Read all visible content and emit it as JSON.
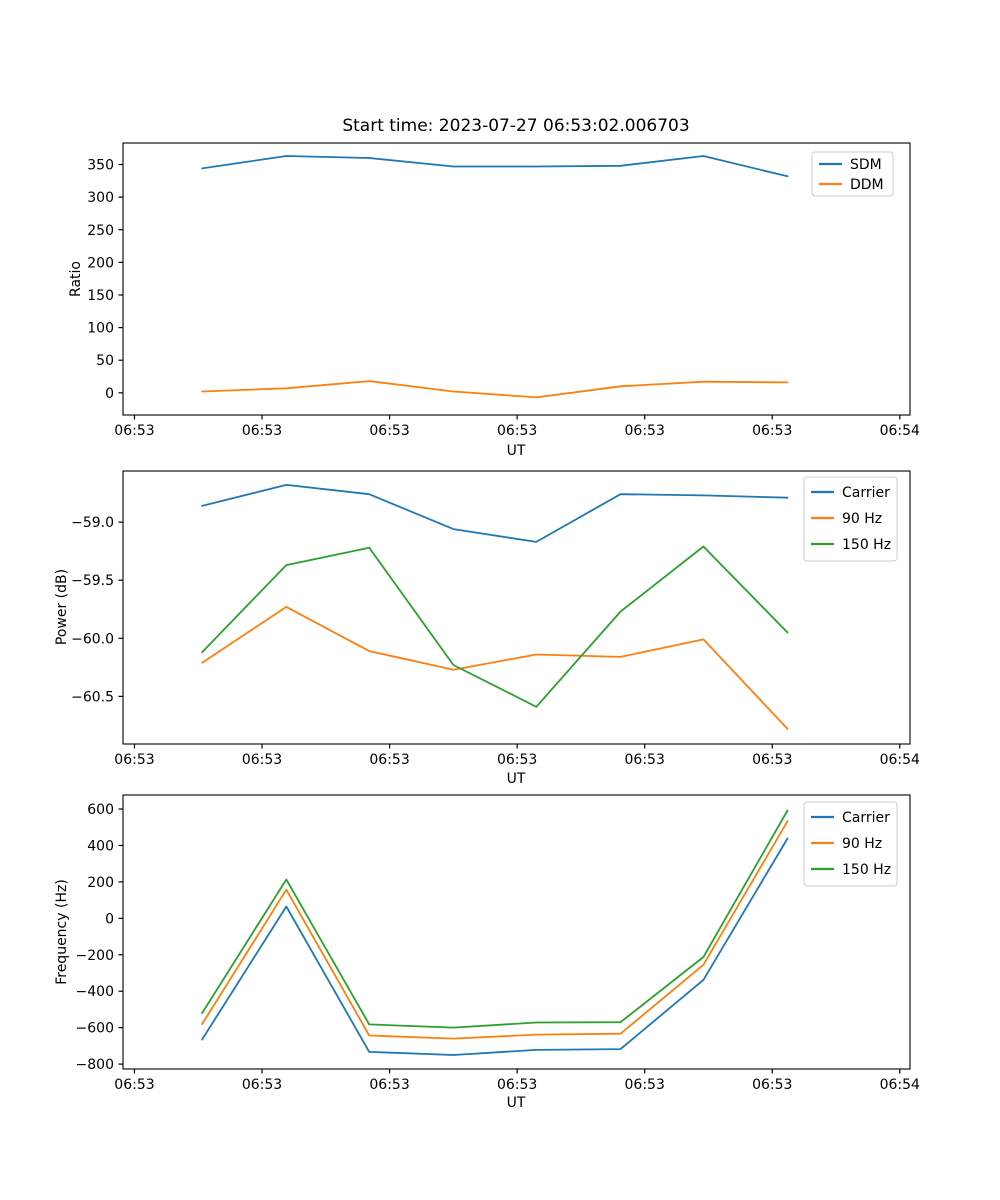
{
  "figure": {
    "title": "Start time: 2023-07-27 06:53:02.006703"
  },
  "x_axis": {
    "label": "UT",
    "tick_labels": [
      "06:53",
      "06:53",
      "06:53",
      "06:53",
      "06:53",
      "06:53",
      "06:54"
    ],
    "tick_seconds": [
      0,
      10,
      20,
      30,
      40,
      50,
      60
    ],
    "xlim_seconds": [
      -0.9,
      60.8
    ],
    "point_times_seconds_after_0653": [
      5.3,
      11.9,
      18.4,
      25.0,
      31.5,
      38.1,
      44.6,
      51.2
    ]
  },
  "chart_data": [
    {
      "type": "line",
      "title": "Start time: 2023-07-27 06:53:02.006703",
      "xlabel": "UT",
      "ylabel": "Ratio",
      "ylim": [
        -34,
        383
      ],
      "ytick_values": [
        0,
        50,
        100,
        150,
        200,
        250,
        300,
        350
      ],
      "ytick_labels": [
        "0",
        "50",
        "100",
        "150",
        "200",
        "250",
        "300",
        "350"
      ],
      "legend_position": "upper right",
      "grid": false,
      "series": [
        {
          "name": "SDM",
          "color": "#1f77b4",
          "values": [
            344,
            363,
            360,
            347,
            347,
            348,
            363,
            332
          ]
        },
        {
          "name": "DDM",
          "color": "#ff7f0e",
          "values": [
            2,
            7,
            18,
            2,
            -7,
            10,
            17,
            16
          ]
        }
      ]
    },
    {
      "type": "line",
      "title": "",
      "xlabel": "UT",
      "ylabel": "Power (dB)",
      "ylim": [
        -60.91,
        -58.56
      ],
      "ytick_values": [
        -59.0,
        -59.5,
        -60.0,
        -60.5
      ],
      "ytick_labels": [
        "−59.0",
        "−59.5",
        "−60.0",
        "−60.5"
      ],
      "legend_position": "upper right",
      "grid": false,
      "series": [
        {
          "name": "Carrier",
          "color": "#1f77b4",
          "values": [
            -58.86,
            -58.68,
            -58.76,
            -59.06,
            -59.17,
            -58.76,
            -58.77,
            -58.79
          ]
        },
        {
          "name": "90 Hz",
          "color": "#ff7f0e",
          "values": [
            -60.21,
            -59.73,
            -60.11,
            -60.27,
            -60.14,
            -60.16,
            -60.01,
            -60.78
          ]
        },
        {
          "name": "150 Hz",
          "color": "#2ca02c",
          "values": [
            -60.12,
            -59.37,
            -59.22,
            -60.23,
            -60.59,
            -59.77,
            -59.21,
            -59.95
          ]
        }
      ]
    },
    {
      "type": "line",
      "title": "",
      "xlabel": "UT",
      "ylabel": "Frequency (Hz)",
      "ylim": [
        -827,
        677
      ],
      "ytick_values": [
        600,
        400,
        200,
        0,
        -200,
        -400,
        -600,
        -800
      ],
      "ytick_labels": [
        "600",
        "400",
        "200",
        "0",
        "−200",
        "−400",
        "−600",
        "−800"
      ],
      "legend_position": "upper right",
      "grid": false,
      "series": [
        {
          "name": "Carrier",
          "color": "#1f77b4",
          "values": [
            -665,
            65,
            -733,
            -750,
            -722,
            -718,
            -338,
            438
          ]
        },
        {
          "name": "90 Hz",
          "color": "#ff7f0e",
          "values": [
            -580,
            157,
            -643,
            -660,
            -638,
            -633,
            -255,
            533
          ]
        },
        {
          "name": "150 Hz",
          "color": "#2ca02c",
          "values": [
            -520,
            213,
            -582,
            -600,
            -572,
            -570,
            -212,
            592
          ]
        }
      ]
    }
  ]
}
